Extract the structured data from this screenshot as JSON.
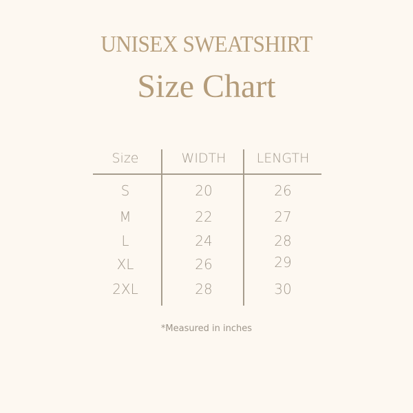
{
  "title": "UNISEX SWEATSHIRT",
  "subtitle": "Size Chart",
  "table": {
    "headers": [
      "Size",
      "WIDTH",
      "LENGTH"
    ],
    "rows": [
      [
        "S",
        "20",
        "26"
      ],
      [
        "M",
        "22",
        "27"
      ],
      [
        "L",
        "24",
        "28"
      ],
      [
        "XL",
        "26",
        "29"
      ],
      [
        "2XL",
        "28",
        "30"
      ]
    ]
  },
  "footnote": "*Measured in inches",
  "colors": {
    "background": "#fdf8f1",
    "title": "#b8a07e",
    "text": "#a39a8e",
    "lines": "#a69c8d"
  }
}
